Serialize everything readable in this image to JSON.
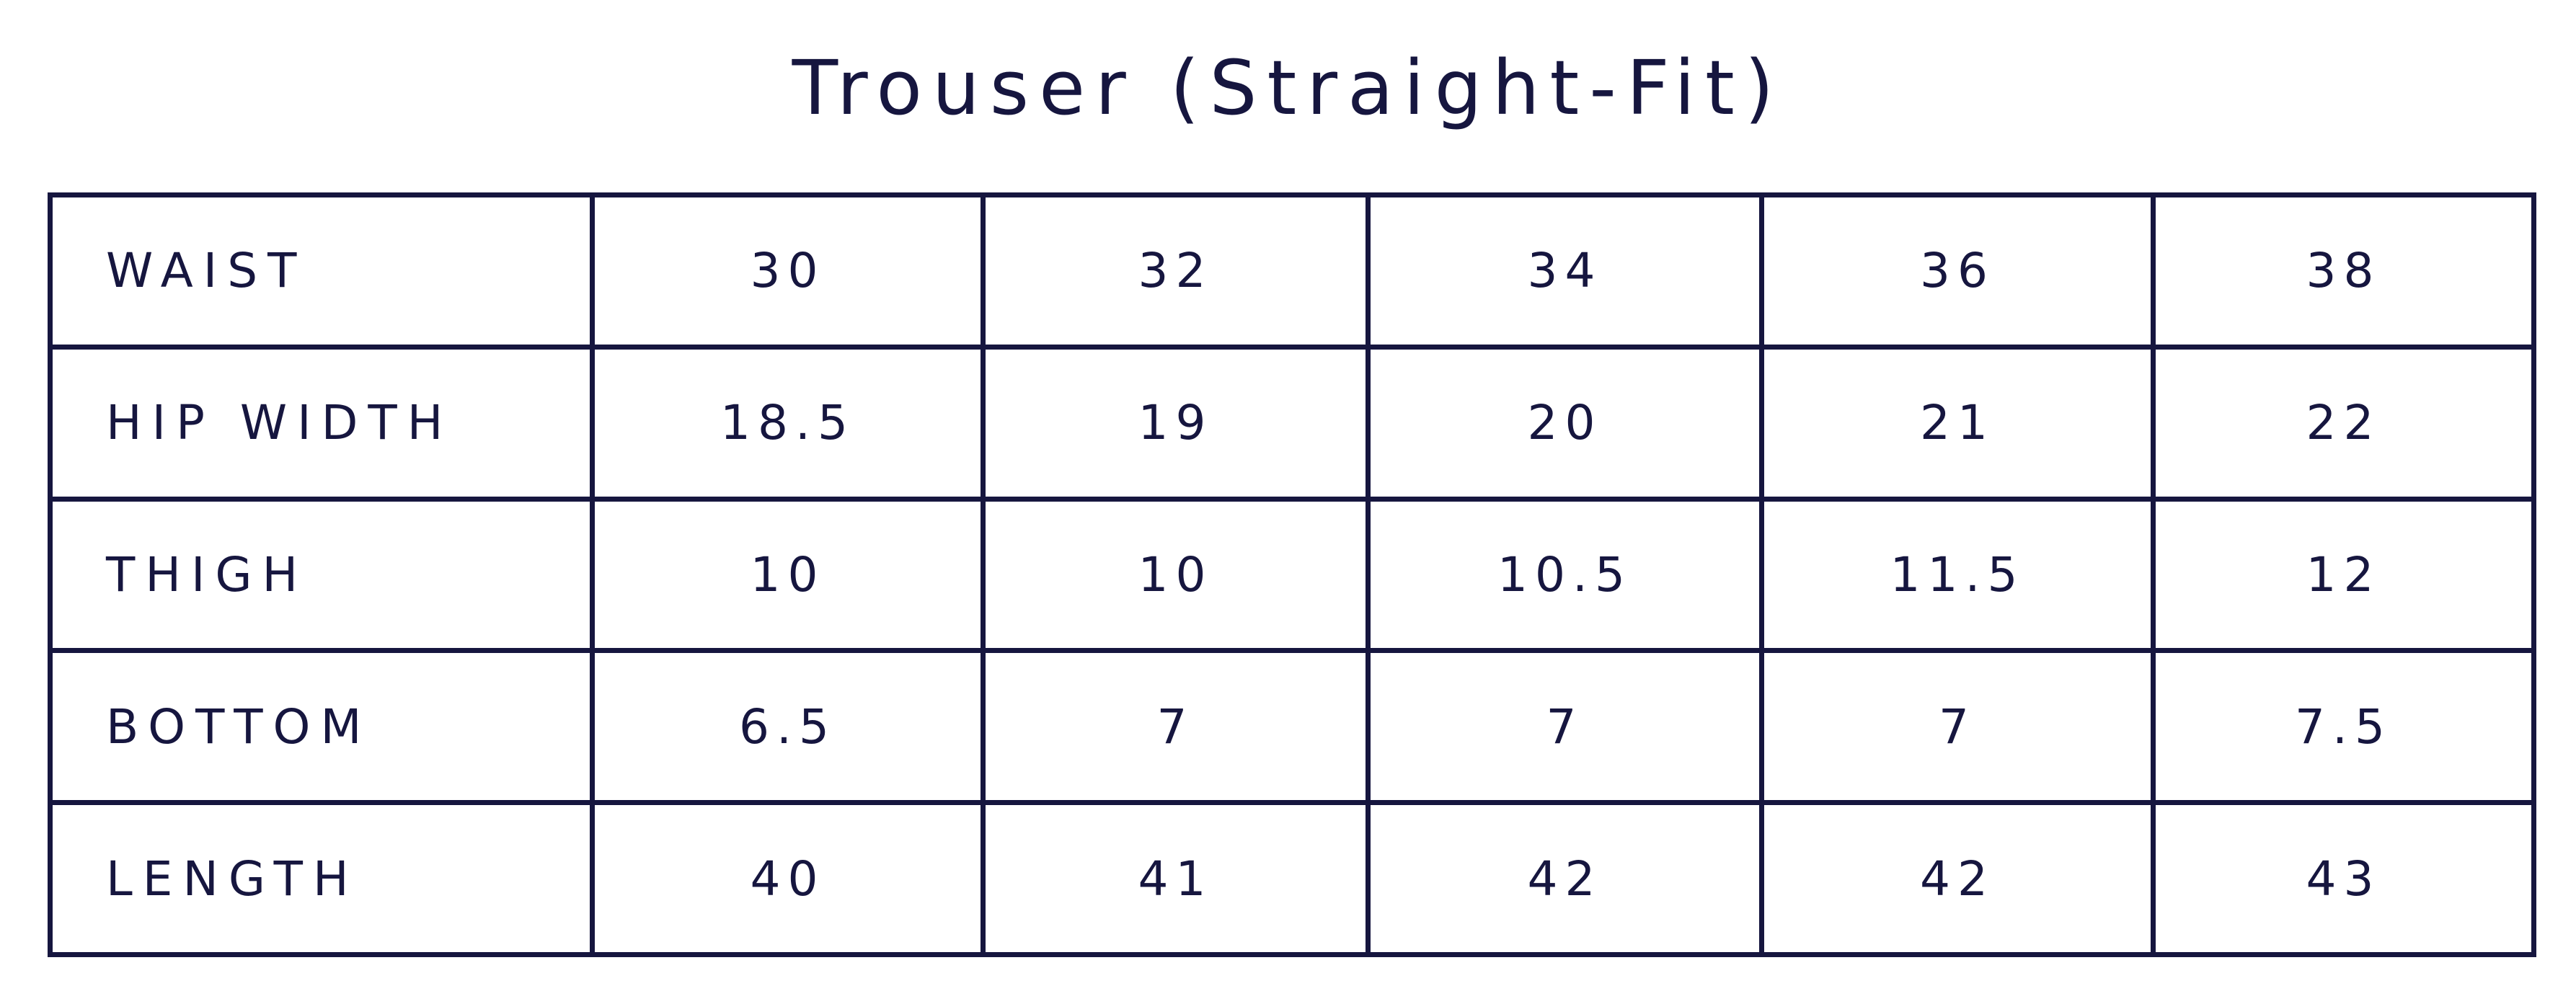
{
  "title": "Trouser (Straight-Fit)",
  "colors": {
    "ink": "#16163f",
    "background": "#ffffff"
  },
  "rows": [
    {
      "label": "WAIST",
      "values": [
        "30",
        "32",
        "34",
        "36",
        "38"
      ]
    },
    {
      "label": "HIP WIDTH",
      "values": [
        "18.5",
        "19",
        "20",
        "21",
        "22"
      ]
    },
    {
      "label": "THIGH",
      "values": [
        "10",
        "10",
        "10.5",
        "11.5",
        "12"
      ]
    },
    {
      "label": "BOTTOM",
      "values": [
        "6.5",
        "7",
        "7",
        "7",
        "7.5"
      ]
    },
    {
      "label": "LENGTH",
      "values": [
        "40",
        "41",
        "42",
        "42",
        "43"
      ]
    }
  ]
}
